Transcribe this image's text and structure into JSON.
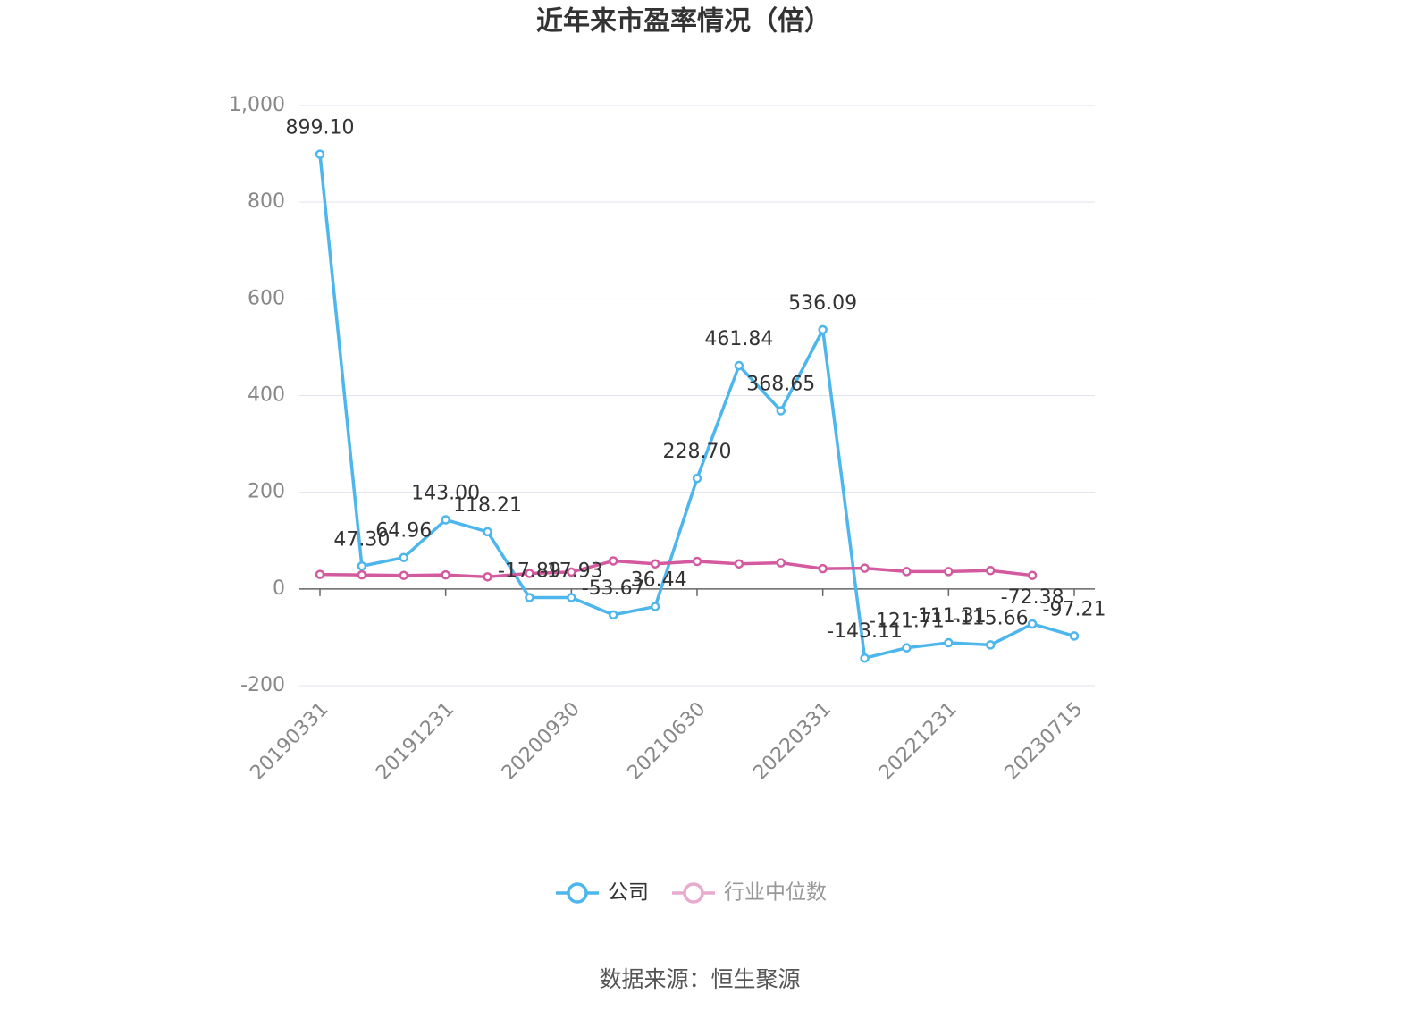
{
  "chart_data": {
    "type": "line",
    "title": "近年来市盈率情况（倍）",
    "source": "数据来源：恒生聚源",
    "categories": [
      "20190331",
      null,
      null,
      "20191231",
      null,
      null,
      "20200930",
      null,
      null,
      "20210630",
      null,
      null,
      "20220331",
      null,
      null,
      "20221231",
      null,
      null,
      "20230715"
    ],
    "series": [
      {
        "name": "公司",
        "color": "#4db6ec",
        "values": [
          899.1,
          47.3,
          64.96,
          143.0,
          118.21,
          -17.89,
          -17.93,
          -53.67,
          -36.44,
          228.7,
          461.84,
          368.65,
          536.09,
          -143.11,
          -121.71,
          -111.31,
          -115.66,
          -72.38,
          -97.21
        ],
        "value_labels": [
          "899.10",
          "47.30",
          "64.96",
          "143.00",
          "118.21",
          "-17.89",
          "-17.93",
          "-53.67",
          "-36.44",
          "228.70",
          "461.84",
          "368.65",
          "536.09",
          "-143.11",
          "-121.71",
          "-111.31",
          "-115.66",
          "-72.38",
          "-97.21"
        ]
      },
      {
        "name": "行业中位数",
        "color": "#d35a9f",
        "values": [
          30,
          29,
          28,
          29,
          25,
          32,
          35,
          58,
          52,
          57,
          52,
          54,
          42,
          43,
          36,
          36,
          38,
          28,
          null
        ]
      }
    ],
    "ylim": [
      -200,
      1000
    ],
    "yticks": [
      -200,
      0,
      200,
      400,
      600,
      800,
      {
        "value": 1000,
        "label": "1,000"
      }
    ],
    "grid": true
  }
}
